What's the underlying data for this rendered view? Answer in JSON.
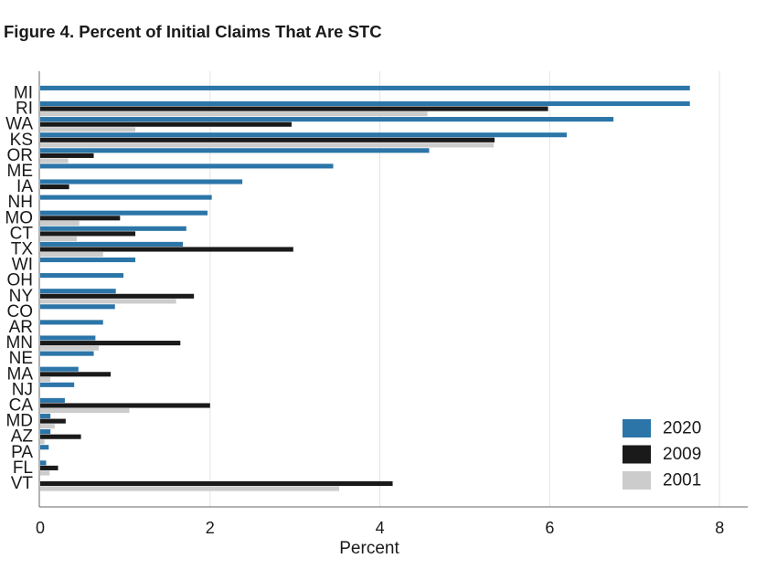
{
  "title": "Figure 4. Percent of Initial Claims That Are STC",
  "chart_data": {
    "type": "bar",
    "orientation": "horizontal",
    "title": "Figure 4. Percent of Initial Claims That Are STC",
    "xlabel": "Percent",
    "ylabel": "",
    "xlim": [
      0,
      8.4
    ],
    "xticks": [
      "0",
      "2",
      "4",
      "6",
      "8"
    ],
    "xtick_values": [
      0,
      2,
      4,
      6,
      8
    ],
    "grid": "vertical",
    "legend_position": "bottom-right",
    "categories": [
      "MI",
      "RI",
      "WA",
      "KS",
      "OR",
      "ME",
      "IA",
      "NH",
      "MO",
      "CT",
      "TX",
      "WI",
      "OH",
      "NY",
      "CO",
      "AR",
      "MN",
      "NE",
      "MA",
      "NJ",
      "CA",
      "MD",
      "AZ",
      "PA",
      "FL",
      "VT"
    ],
    "series": [
      {
        "name": "2020",
        "color": "#2b75a8",
        "values": [
          7.65,
          7.65,
          6.75,
          6.2,
          4.58,
          3.45,
          2.38,
          2.02,
          1.97,
          1.72,
          1.68,
          1.12,
          0.98,
          0.89,
          0.88,
          0.74,
          0.65,
          0.63,
          0.45,
          0.4,
          0.29,
          0.12,
          0.12,
          0.1,
          0.07,
          0
        ]
      },
      {
        "name": "2009",
        "color": "#1a1a1a",
        "values": [
          0,
          5.98,
          2.96,
          5.35,
          0.63,
          0,
          0.34,
          0,
          0.94,
          1.12,
          2.98,
          0,
          0,
          1.81,
          0,
          0,
          1.65,
          0,
          0.83,
          0,
          2.0,
          0.3,
          0.48,
          0,
          0.21,
          4.15
        ]
      },
      {
        "name": "2001",
        "color": "#cccccc",
        "values": [
          0,
          4.56,
          1.12,
          5.34,
          0.33,
          0,
          0,
          0,
          0.46,
          0.43,
          0.74,
          0,
          0,
          1.6,
          0,
          0,
          0.69,
          0,
          0.12,
          0,
          1.05,
          0.17,
          0.05,
          0,
          0.11,
          3.52
        ]
      }
    ]
  }
}
